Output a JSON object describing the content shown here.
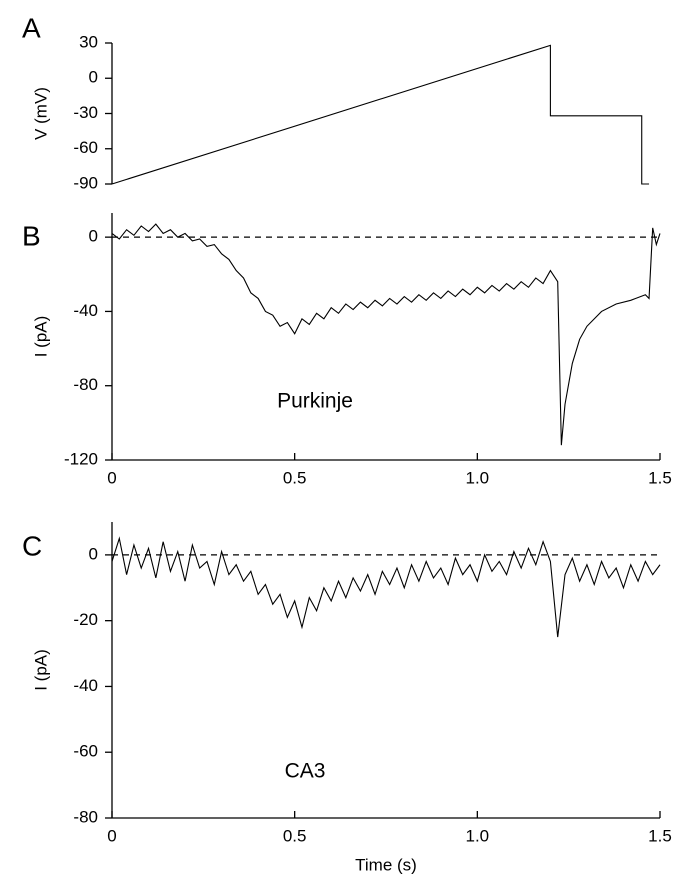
{
  "chart_data": [
    {
      "type": "line",
      "panel_label": "A",
      "ylabel": "V (mV)",
      "x": [
        0,
        1.2,
        1.2,
        1.45,
        1.45,
        1.47
      ],
      "series": [
        {
          "color": "#000000",
          "values": [
            -90,
            28,
            -32,
            -32,
            -90,
            -90
          ]
        }
      ],
      "xlim": [
        0,
        1.5
      ],
      "ylim": [
        -90,
        30
      ],
      "yticks": [
        30,
        0,
        -30,
        -60,
        -90
      ]
    },
    {
      "type": "line",
      "panel_label": "B",
      "ylabel": "I (pA)",
      "annotation": "Purkinje",
      "reference_line": 0,
      "x": [
        0,
        0.02,
        0.04,
        0.06,
        0.08,
        0.1,
        0.12,
        0.14,
        0.16,
        0.18,
        0.2,
        0.22,
        0.24,
        0.26,
        0.28,
        0.3,
        0.32,
        0.34,
        0.36,
        0.38,
        0.4,
        0.42,
        0.44,
        0.46,
        0.48,
        0.5,
        0.52,
        0.54,
        0.56,
        0.58,
        0.6,
        0.62,
        0.64,
        0.66,
        0.68,
        0.7,
        0.72,
        0.74,
        0.76,
        0.78,
        0.8,
        0.82,
        0.84,
        0.86,
        0.88,
        0.9,
        0.92,
        0.94,
        0.96,
        0.98,
        1,
        1.02,
        1.04,
        1.06,
        1.08,
        1.1,
        1.12,
        1.14,
        1.16,
        1.18,
        1.2,
        1.22,
        1.23,
        1.24,
        1.26,
        1.28,
        1.3,
        1.34,
        1.38,
        1.42,
        1.46,
        1.47,
        1.48,
        1.49,
        1.5
      ],
      "series": [
        {
          "color": "#000000",
          "values": [
            2,
            -1,
            4,
            1,
            6,
            3,
            7,
            2,
            4,
            0,
            2,
            -2,
            -1,
            -5,
            -4,
            -9,
            -12,
            -18,
            -22,
            -30,
            -33,
            -40,
            -42,
            -48,
            -46,
            -52,
            -44,
            -47,
            -41,
            -44,
            -38,
            -41,
            -36,
            -39,
            -35,
            -38,
            -34,
            -37,
            -33,
            -36,
            -32,
            -35,
            -31,
            -34,
            -30,
            -33,
            -29,
            -32,
            -28,
            -31,
            -27,
            -30,
            -26,
            -29,
            -25,
            -28,
            -24,
            -27,
            -22,
            -25,
            -18,
            -24,
            -112,
            -90,
            -68,
            -55,
            -48,
            -40,
            -36,
            -34,
            -31,
            -33,
            5,
            -4,
            2
          ]
        }
      ],
      "xlim": [
        0,
        1.5
      ],
      "ylim": [
        -120,
        13
      ],
      "yticks": [
        0,
        -40,
        -80,
        -120
      ],
      "xticks": [
        0,
        0.5,
        {
          "value": 1,
          "label": "1.0"
        },
        1.5
      ]
    },
    {
      "type": "line",
      "panel_label": "C",
      "ylabel": "I (pA)",
      "xlabel": "Time (s)",
      "annotation": "CA3",
      "reference_line": 0,
      "x": [
        0,
        0.02,
        0.04,
        0.06,
        0.08,
        0.1,
        0.12,
        0.14,
        0.16,
        0.18,
        0.2,
        0.22,
        0.24,
        0.26,
        0.28,
        0.3,
        0.32,
        0.34,
        0.36,
        0.38,
        0.4,
        0.42,
        0.44,
        0.46,
        0.48,
        0.5,
        0.52,
        0.54,
        0.56,
        0.58,
        0.6,
        0.62,
        0.64,
        0.66,
        0.68,
        0.7,
        0.72,
        0.74,
        0.76,
        0.78,
        0.8,
        0.82,
        0.84,
        0.86,
        0.88,
        0.9,
        0.92,
        0.94,
        0.96,
        0.98,
        1,
        1.02,
        1.04,
        1.06,
        1.08,
        1.1,
        1.12,
        1.14,
        1.16,
        1.18,
        1.2,
        1.22,
        1.24,
        1.26,
        1.28,
        1.3,
        1.32,
        1.34,
        1.36,
        1.38,
        1.4,
        1.42,
        1.44,
        1.46,
        1.48,
        1.5
      ],
      "series": [
        {
          "color": "#000000",
          "values": [
            -2,
            5,
            -6,
            3,
            -4,
            2,
            -7,
            4,
            -5,
            1,
            -8,
            3,
            -4,
            -2,
            -9,
            1,
            -6,
            -3,
            -8,
            -5,
            -12,
            -9,
            -15,
            -12,
            -19,
            -14,
            -22,
            -13,
            -17,
            -10,
            -14,
            -8,
            -13,
            -7,
            -11,
            -6,
            -12,
            -5,
            -9,
            -4,
            -10,
            -3,
            -8,
            -2,
            -7,
            -4,
            -9,
            -1,
            -6,
            -3,
            -8,
            0,
            -5,
            -2,
            -6,
            1,
            -4,
            2,
            -3,
            4,
            -2,
            -25,
            -6,
            -1,
            -8,
            -3,
            -9,
            -2,
            -7,
            -4,
            -10,
            -3,
            -8,
            -2,
            -6,
            -3
          ]
        }
      ],
      "xlim": [
        0,
        1.5
      ],
      "ylim": [
        -80,
        10
      ],
      "yticks": [
        0,
        -20,
        -40,
        -60,
        -80
      ],
      "xticks": [
        0,
        0.5,
        {
          "value": 1,
          "label": "1.0"
        },
        1.5
      ]
    }
  ]
}
